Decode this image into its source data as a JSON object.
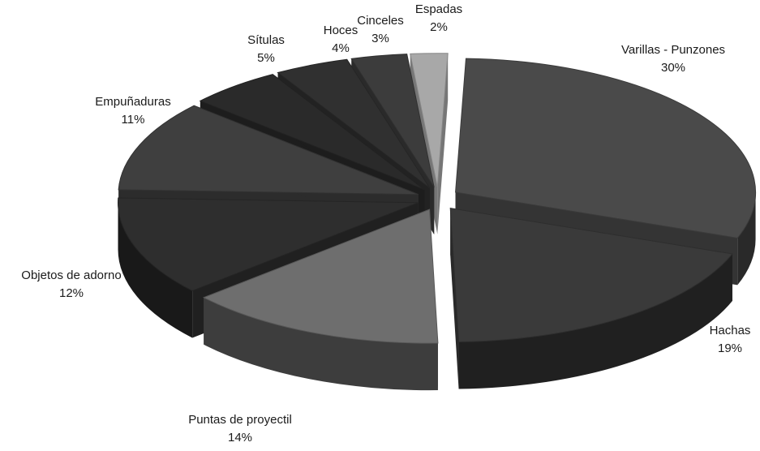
{
  "chart_data": {
    "type": "pie",
    "variant": "3d-exploded",
    "title": "",
    "legend": "none",
    "categories": [
      "Varillas - Punzones",
      "Hachas",
      "Puntas de proyectil",
      "Objetos de adorno",
      "Empuñaduras",
      "Sítulas",
      "Hoces",
      "Cinceles",
      "Espadas"
    ],
    "values": [
      30,
      19,
      14,
      12,
      11,
      5,
      4,
      3,
      2
    ],
    "value_labels": [
      "30%",
      "19%",
      "14%",
      "12%",
      "11%",
      "5%",
      "4%",
      "3%",
      "2%"
    ],
    "colors": {
      "Varillas - Punzones": "#4a4a4a",
      "Hachas": "#3a3a3a",
      "Puntas de proyectil": "#6e6e6e",
      "Objetos de adorno": "#2e2e2e",
      "Empuñaduras": "#3f3f3f",
      "Sítulas": "#2a2a2a",
      "Hoces": "#303030",
      "Cinceles": "#3c3c3c",
      "Espadas": "#a8a8a8"
    }
  }
}
